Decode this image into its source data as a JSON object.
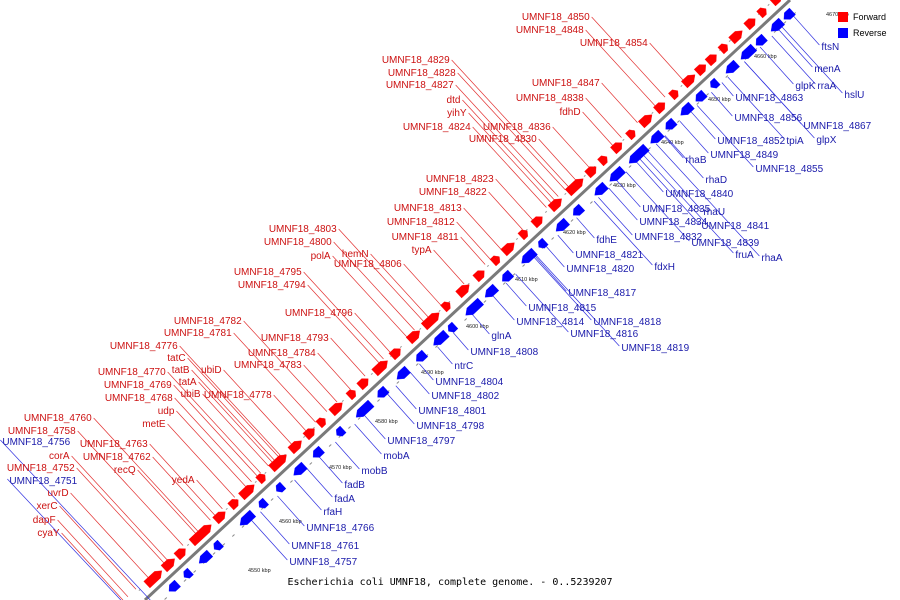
{
  "caption": "Escherichia coli UMNF18, complete genome. - 0..5239207",
  "legend": [
    {
      "label": "Forward",
      "color": "#ff0000"
    },
    {
      "label": "Reverse",
      "color": "#0000ff"
    }
  ],
  "colors": {
    "forward": "#ff0000",
    "reverse": "#0000ff",
    "forward_label": "#cc1111",
    "reverse_label": "#1a1aaa",
    "backbone": "#777777"
  },
  "tick_labels": [
    "4550 kbp",
    "4560 kbp",
    "4570 kbp",
    "4580 kbp",
    "4590 kbp",
    "4600 kbp",
    "4610 kbp",
    "4620 kbp",
    "4630 kbp",
    "4640 kbp",
    "4650 kbp",
    "4660 kbp",
    "4670 kbp"
  ],
  "forward_labels": [
    "UMNF18_4850",
    "UMNF18_4848",
    "UMNF18_4854",
    "UMNF18_4829",
    "UMNF18_4828",
    "UMNF18_4827",
    "UMNF18_4847",
    "dtd",
    "UMNF18_4838",
    "yihY",
    "fdhD",
    "UMNF18_4824",
    "UMNF18_4836",
    "UMNF18_4830",
    "UMNF18_4823",
    "UMNF18_4822",
    "UMNF18_4813",
    "UMNF18_4812",
    "UMNF18_4803",
    "UMNF18_4811",
    "UMNF18_4800",
    "hemN",
    "typA",
    "polA",
    "UMNF18_4806",
    "UMNF18_4795",
    "UMNF18_4794",
    "UMNF18_4796",
    "UMNF18_4782",
    "UMNF18_4781",
    "UMNF18_4793",
    "UMNF18_4776",
    "tatC",
    "UMNF18_4784",
    "tatB",
    "UMNF18_4770",
    "ubiD",
    "UMNF18_4783",
    "tatA",
    "UMNF18_4769",
    "ubiB",
    "UMNF18_4778",
    "UMNF18_4768",
    "udp",
    "UMNF18_4760",
    "metE",
    "UMNF18_4758",
    "UMNF18_4763",
    "UMNF18_4762",
    "corA",
    "recQ",
    "UMNF18_4752",
    "yedA",
    "uvrD",
    "xerC",
    "dapF",
    "cyaY"
  ],
  "reverse_labels": [
    "ftsN",
    "menA",
    "rraA",
    "glpK",
    "hslU",
    "UMNF18_4863",
    "UMNF18_4856",
    "UMNF18_4867",
    "UMNF18_4852",
    "tpiA",
    "glpX",
    "UMNF18_4849",
    "rhaB",
    "UMNF18_4855",
    "rhaD",
    "UMNF18_4840",
    "UMNF18_4835",
    "rhaU",
    "UMNF18_4834",
    "UMNF18_4841",
    "UMNF18_4832",
    "UMNF18_4839",
    "fdhE",
    "fruA",
    "rhaA",
    "UMNF18_4821",
    "fdxH",
    "UMNF18_4820",
    "UMNF18_4817",
    "UMNF18_4815",
    "UMNF18_4818",
    "UMNF18_4814",
    "UMNF18_4816",
    "glnA",
    "UMNF18_4819",
    "UMNF18_4808",
    "ntrC",
    "UMNF18_4804",
    "UMNF18_4802",
    "UMNF18_4801",
    "UMNF18_4798",
    "UMNF18_4797",
    "mobA",
    "mobB",
    "fadB",
    "fadA",
    "rfaH",
    "UMNF18_4766",
    "UMNF18_4756",
    "UMNF18_4751",
    "UMNF18_4761",
    "UMNF18_4757"
  ]
}
